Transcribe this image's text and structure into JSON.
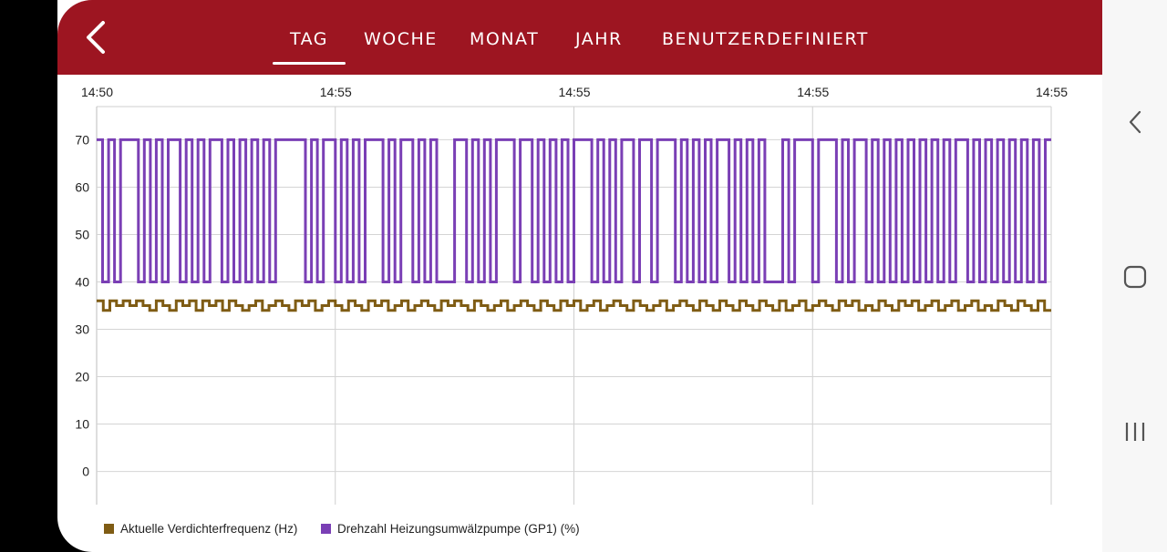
{
  "header": {
    "back_icon": "chevron-left-icon",
    "tabs": [
      {
        "label": "TAG",
        "active": true
      },
      {
        "label": "WOCHE",
        "active": false
      },
      {
        "label": "MONAT",
        "active": false
      },
      {
        "label": "JAHR",
        "active": false
      },
      {
        "label": "BENUTZERDEFINIERT",
        "active": false
      }
    ],
    "color": "#9d1521"
  },
  "android_nav": {
    "icons": [
      "back-chevron-icon",
      "home-square-icon",
      "recents-bars-icon"
    ]
  },
  "chart_data": {
    "type": "line",
    "title": "",
    "xlabel": "",
    "ylabel": "",
    "x_tick_labels": [
      "14:50",
      "14:55",
      "14:55",
      "14:55",
      "14:55"
    ],
    "y_ticks": [
      0,
      10,
      20,
      30,
      40,
      50,
      60,
      70
    ],
    "ylim": [
      -7,
      77
    ],
    "grid": true,
    "legend_position": "bottom-left",
    "series": [
      {
        "name": "Aktuelle Verdichterfrequenz (Hz)",
        "color": "#7f5c14",
        "step": true,
        "levels": [
          34,
          36
        ],
        "pattern": [
          36,
          34,
          36,
          35,
          36,
          35,
          36,
          35,
          34,
          36,
          35,
          34,
          36,
          35,
          36,
          34,
          36,
          35,
          36,
          34,
          36,
          35,
          34,
          35,
          36,
          34,
          35,
          36,
          35,
          34,
          36,
          35,
          36,
          34,
          35,
          36,
          35,
          34,
          36,
          35,
          34,
          36,
          35,
          36,
          34,
          35,
          36,
          34,
          35,
          36,
          35,
          34,
          36,
          35,
          36,
          35,
          34,
          36,
          35,
          34,
          35,
          36,
          34,
          35,
          36,
          35,
          34,
          36,
          35,
          34,
          36,
          35,
          36,
          34,
          35,
          36,
          34,
          35,
          36,
          35,
          34,
          36,
          35,
          34,
          35,
          36,
          34,
          35,
          36,
          35,
          34,
          36,
          35,
          34,
          36,
          35,
          34,
          36,
          35,
          34,
          36,
          35,
          34,
          36,
          34,
          35,
          36,
          34,
          35,
          36,
          35,
          34,
          36,
          35,
          36,
          34,
          35,
          34,
          36,
          35,
          34,
          36,
          35,
          36,
          34,
          35,
          36,
          34,
          35,
          36,
          34,
          35,
          36,
          34,
          35,
          34,
          36,
          35,
          34,
          36,
          35,
          34,
          36,
          34
        ]
      },
      {
        "name": "Drehzahl Heizungsumwälzpumpe (GP1) (%)",
        "color": "#7a3fb5",
        "step": true,
        "levels": [
          40,
          70
        ],
        "pattern": [
          70,
          40,
          70,
          40,
          70,
          70,
          70,
          40,
          70,
          40,
          70,
          40,
          70,
          70,
          40,
          70,
          40,
          70,
          40,
          70,
          70,
          40,
          70,
          40,
          70,
          40,
          70,
          40,
          70,
          40,
          70,
          70,
          70,
          70,
          70,
          40,
          70,
          40,
          70,
          70,
          40,
          70,
          40,
          70,
          40,
          70,
          70,
          70,
          40,
          70,
          40,
          70,
          70,
          40,
          70,
          40,
          70,
          40,
          40,
          40,
          70,
          70,
          40,
          70,
          40,
          70,
          40,
          70,
          70,
          70,
          40,
          70,
          70,
          40,
          70,
          40,
          70,
          40,
          70,
          40,
          70,
          70,
          70,
          40,
          70,
          40,
          70,
          40,
          70,
          70,
          40,
          70,
          70,
          40,
          70,
          70,
          70,
          40,
          70,
          40,
          70,
          40,
          70,
          40,
          70,
          70,
          40,
          70,
          40,
          70,
          40,
          70,
          40,
          40,
          40,
          70,
          40,
          70,
          70,
          70,
          40,
          70,
          70,
          70,
          40,
          70,
          40,
          70,
          70,
          40,
          70,
          40,
          70,
          40,
          70,
          40,
          70,
          40,
          70,
          40,
          70,
          40,
          70,
          40,
          70,
          70,
          40,
          70,
          40,
          70,
          40,
          70,
          40,
          70,
          40,
          70,
          40,
          70,
          40,
          70
        ]
      }
    ]
  }
}
